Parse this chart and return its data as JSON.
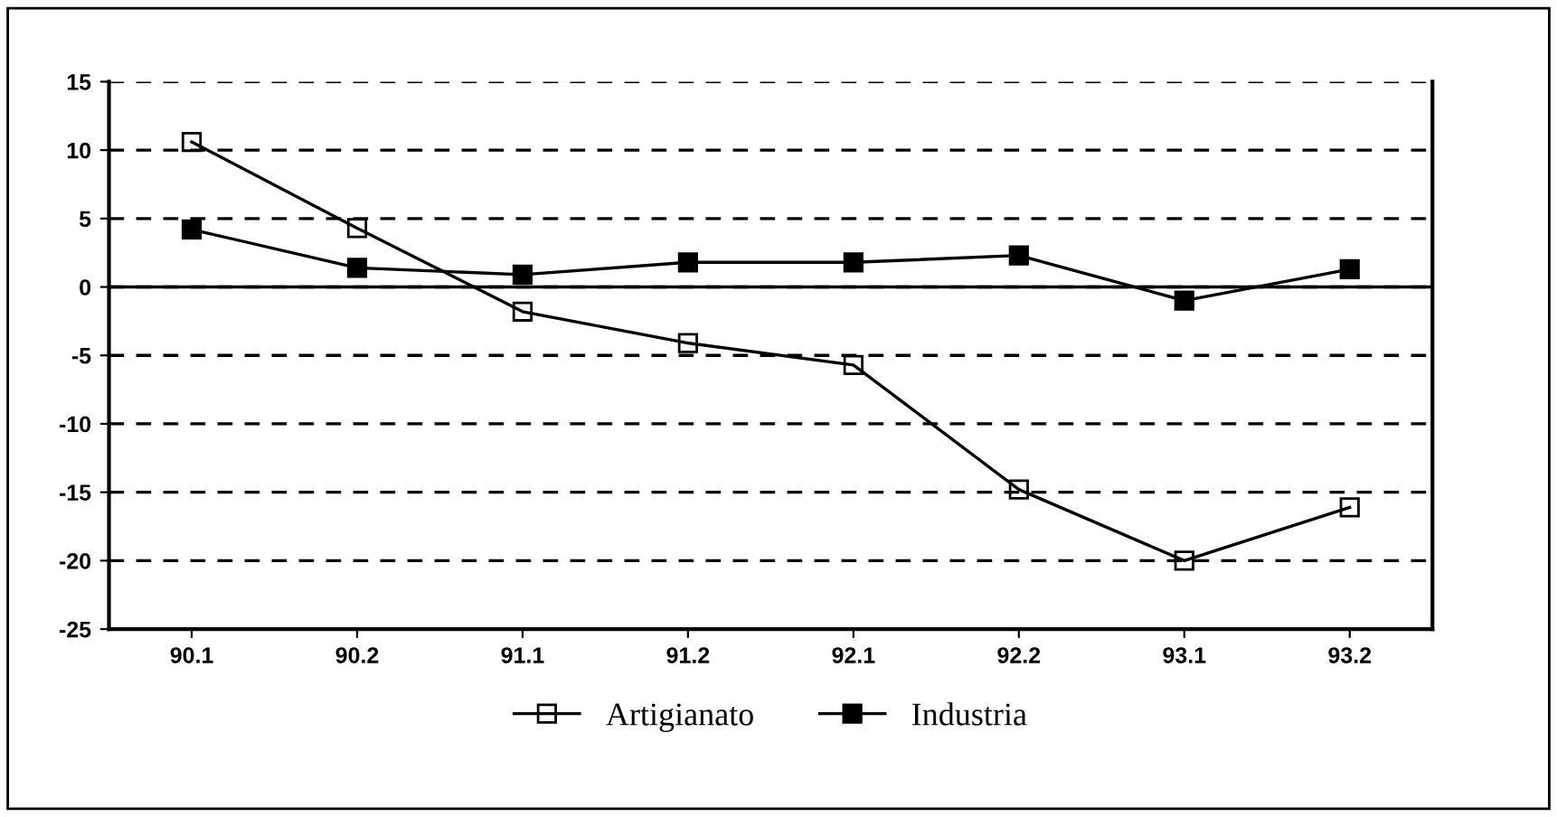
{
  "chart_data": {
    "type": "line",
    "categories": [
      "90.1",
      "90.2",
      "91.1",
      "91.2",
      "92.1",
      "92.2",
      "93.1",
      "93.2"
    ],
    "series": [
      {
        "name": "Artigianato",
        "color": "#000000",
        "marker": "square_open",
        "values": [
          10.6,
          4.3,
          -1.8,
          -4.1,
          -5.7,
          -14.8,
          -20.0,
          -16.1
        ]
      },
      {
        "name": "Industria",
        "color": "#000000",
        "marker": "square",
        "values": [
          4.2,
          1.4,
          0.9,
          1.8,
          1.8,
          2.3,
          -1.0,
          1.3
        ]
      }
    ],
    "ylim": [
      -25,
      15
    ],
    "yticks": [
      -25,
      -20,
      -15,
      -10,
      -5,
      0,
      5,
      10,
      15
    ],
    "grid": "y",
    "line_style": "solid",
    "legend": "bottom",
    "ref_lines": [
      {
        "axis": "y",
        "value": 0,
        "color": "#000000",
        "line_style": "solid"
      }
    ]
  }
}
